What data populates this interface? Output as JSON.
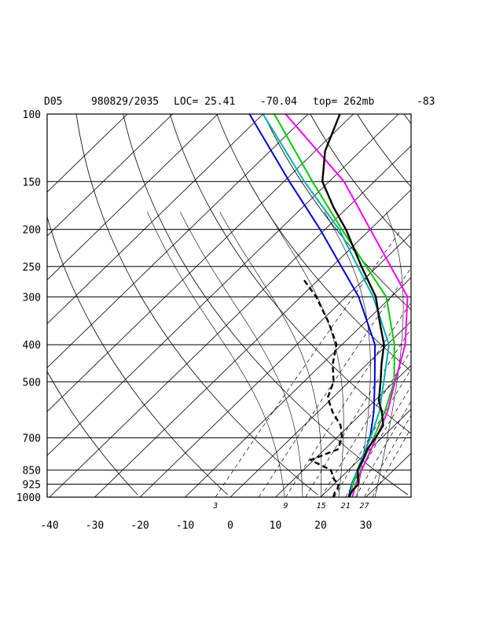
{
  "header": {
    "station": "D05",
    "datetime": "980829/2035",
    "location": "LOC= 25.41",
    "longitude": "-70.04",
    "top": "top= 262mb",
    "extra": "-83"
  },
  "chart_data": {
    "type": "line",
    "title": "D05   980829/2035 LOC= 25.41   -70.04  top= 262mb   -83",
    "y_axis": {
      "scale": "log-pressure (inverted)",
      "range_mb": [
        1000,
        100
      ],
      "ticks": [
        100,
        150,
        200,
        250,
        300,
        400,
        500,
        700,
        850,
        925,
        1000
      ]
    },
    "x_axis": {
      "range_c": [
        -40,
        40
      ],
      "ticks": [
        -40,
        -30,
        -20,
        -10,
        0,
        10,
        20,
        30
      ],
      "skewed_isotherms": true
    },
    "mixing_ratio_labels": [
      "3",
      "9",
      "15",
      "21",
      "27"
    ],
    "grid": true,
    "series": [
      {
        "color": "#000000",
        "style": "solid",
        "points": [
          [
            1000,
            26.2
          ],
          [
            960,
            25.5
          ],
          [
            925,
            25.4
          ],
          [
            900,
            24.3
          ],
          [
            870,
            23.0
          ],
          [
            850,
            22.0
          ],
          [
            800,
            20.9
          ],
          [
            750,
            19.4
          ],
          [
            700,
            18.6
          ],
          [
            650,
            17.5
          ],
          [
            600,
            14.2
          ],
          [
            560,
            10.9
          ],
          [
            500,
            7.0
          ],
          [
            450,
            3.2
          ],
          [
            400,
            -0.7
          ],
          [
            350,
            -6.7
          ],
          [
            300,
            -13.4
          ],
          [
            250,
            -23.5
          ],
          [
            200,
            -35.4
          ],
          [
            175,
            -43.2
          ],
          [
            150,
            -51.5
          ],
          [
            125,
            -57.8
          ],
          [
            100,
            -63.0
          ]
        ]
      },
      {
        "color": "#000000",
        "style": "dashed",
        "points": [
          [
            1000,
            22.8
          ],
          [
            970,
            22.0
          ],
          [
            950,
            21.8
          ],
          [
            925,
            21.0
          ],
          [
            900,
            19.0
          ],
          [
            850,
            16.1
          ],
          [
            800,
            9.3
          ],
          [
            750,
            12.9
          ],
          [
            700,
            11.2
          ],
          [
            650,
            8.1
          ],
          [
            600,
            3.3
          ],
          [
            550,
            -1.1
          ],
          [
            500,
            -3.4
          ],
          [
            450,
            -7.6
          ],
          [
            400,
            -11.2
          ],
          [
            350,
            -18.0
          ],
          [
            300,
            -26.6
          ],
          [
            270,
            -33.4
          ]
        ]
      },
      {
        "color": "#0000dd",
        "style": "solid",
        "points": [
          [
            1000,
            26.2
          ],
          [
            925,
            23.9
          ],
          [
            850,
            22.0
          ],
          [
            700,
            17.4
          ],
          [
            600,
            12.4
          ],
          [
            500,
            5.7
          ],
          [
            400,
            -2.7
          ],
          [
            300,
            -17.2
          ],
          [
            200,
            -41.1
          ],
          [
            150,
            -58.8
          ],
          [
            100,
            -83.0
          ]
        ]
      },
      {
        "color": "#00b0b0",
        "style": "solid",
        "points": [
          [
            1000,
            26.5
          ],
          [
            925,
            24.0
          ],
          [
            850,
            22.0
          ],
          [
            700,
            17.5
          ],
          [
            600,
            13.6
          ],
          [
            500,
            7.7
          ],
          [
            400,
            0.4
          ],
          [
            300,
            -14.0
          ],
          [
            200,
            -36.9
          ],
          [
            150,
            -55.5
          ],
          [
            100,
            -80.0
          ]
        ]
      },
      {
        "color": "#00cc00",
        "style": "solid",
        "points": [
          [
            1000,
            26.5
          ],
          [
            925,
            24.2
          ],
          [
            850,
            22.3
          ],
          [
            700,
            18.2
          ],
          [
            600,
            14.8
          ],
          [
            500,
            10.0
          ],
          [
            400,
            1.6
          ],
          [
            300,
            -11.1
          ],
          [
            200,
            -36.3
          ],
          [
            150,
            -53.7
          ],
          [
            100,
            -77.5
          ]
        ]
      },
      {
        "color": "#ff00ff",
        "style": "solid",
        "points": [
          [
            1000,
            27.0
          ],
          [
            925,
            24.8
          ],
          [
            850,
            22.9
          ],
          [
            700,
            18.8
          ],
          [
            600,
            15.4
          ],
          [
            500,
            10.2
          ],
          [
            400,
            4.0
          ],
          [
            300,
            -6.4
          ],
          [
            200,
            -30.0
          ],
          [
            150,
            -46.7
          ],
          [
            100,
            -75.0
          ]
        ]
      }
    ]
  },
  "colors": {
    "env_temperature": "#000000",
    "env_dewpoint": "#000000",
    "parcel_blue": "#0000dd",
    "parcel_cyan": "#00b0b0",
    "parcel_green": "#00cc00",
    "parcel_magenta": "#ff00ff"
  }
}
